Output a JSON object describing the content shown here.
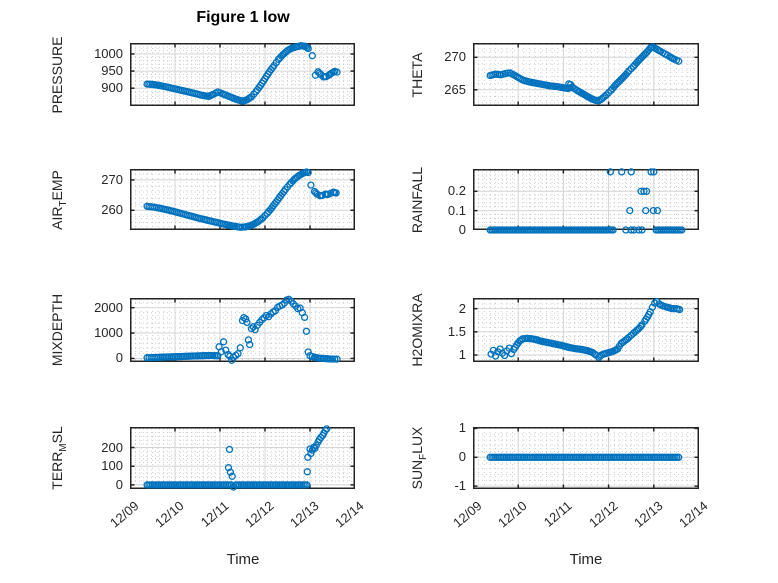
{
  "figure": {
    "title": "Figure 1 low"
  },
  "colors": {
    "marker": "#0072BD",
    "axis": "#242424",
    "grid_major": "#d4d4d4",
    "grid_minor": "#c7c7c7",
    "text": "#262626",
    "background": "#ffffff"
  },
  "x_axis": {
    "label": "Time",
    "ticks": [
      0,
      1,
      2,
      3,
      4,
      5
    ],
    "tick_labels": [
      "12/09",
      "12/10",
      "12/11",
      "12/12",
      "12/13",
      "12/14"
    ],
    "minor_step": 0.125
  },
  "chart_data": [
    {
      "id": "pressure",
      "type": "scatter",
      "marker": "o",
      "ylabel": "PRESSURE",
      "ylim": [
        848,
        1032
      ],
      "yticks": [
        900,
        950,
        1000
      ],
      "yminor": 10,
      "series": [
        {
          "kind": "trend",
          "x": [
            0.38,
            0.5,
            0.65,
            0.8,
            1.0,
            1.2,
            1.4,
            1.6,
            1.75,
            1.85,
            1.95,
            2.05,
            2.2,
            2.35,
            2.5,
            2.6,
            2.7,
            2.8,
            2.9,
            3.0,
            3.1,
            3.2,
            3.3,
            3.4,
            3.5,
            3.6,
            3.7,
            3.8,
            3.9,
            3.96
          ],
          "y": [
            912,
            911,
            908,
            904,
            898,
            892,
            886,
            879,
            876,
            882,
            889,
            884,
            876,
            868,
            862,
            866,
            875,
            890,
            908,
            928,
            948,
            966,
            984,
            998,
            1010,
            1017,
            1021,
            1024,
            1022,
            1016
          ]
        },
        {
          "kind": "points",
          "x": [
            4.05
          ],
          "y": [
            995
          ]
        },
        {
          "kind": "trend",
          "x": [
            4.12,
            4.18,
            4.24,
            4.3,
            4.36,
            4.42,
            4.48,
            4.55,
            4.6
          ],
          "y": [
            938,
            948,
            940,
            933,
            934,
            938,
            944,
            949,
            947
          ]
        }
      ]
    },
    {
      "id": "theta",
      "type": "scatter",
      "marker": "o",
      "ylabel": "THETA",
      "ylim": [
        262.5,
        272.2
      ],
      "yticks": [
        265,
        270
      ],
      "yminor": 1,
      "series": [
        {
          "kind": "trend",
          "x": [
            0.38,
            0.5,
            0.62,
            0.72,
            0.82,
            0.95,
            1.1,
            1.25,
            1.4,
            1.55,
            1.7,
            1.85,
            2.0,
            2.1,
            2.2,
            2.3,
            2.4,
            2.5,
            2.6,
            2.7,
            2.78,
            2.85,
            2.95,
            3.05,
            3.15,
            3.25,
            3.35,
            3.45,
            3.55,
            3.65,
            3.75,
            3.85,
            3.92,
            3.98,
            4.05,
            4.15,
            4.25,
            4.35,
            4.45,
            4.55
          ],
          "y": [
            267.2,
            267.4,
            267.3,
            267.5,
            267.6,
            267.1,
            266.5,
            266.2,
            266.0,
            265.8,
            265.6,
            265.5,
            265.3,
            265.2,
            265.4,
            264.9,
            264.5,
            264.1,
            263.7,
            263.4,
            263.3,
            263.6,
            264.2,
            264.9,
            265.7,
            266.4,
            267.1,
            267.9,
            268.6,
            269.4,
            270.1,
            270.8,
            271.4,
            271.6,
            271.3,
            270.9,
            270.5,
            270.1,
            269.7,
            269.4
          ]
        },
        {
          "kind": "points",
          "x": [
            2.12,
            2.16
          ],
          "y": [
            265.9,
            265.8
          ]
        }
      ]
    },
    {
      "id": "air-temp",
      "type": "scatter",
      "marker": "o",
      "ylabel": "AIR_TEMP",
      "ylim": [
        253.5,
        273.6
      ],
      "yticks": [
        260,
        270
      ],
      "yminor": 2,
      "series": [
        {
          "kind": "trend",
          "x": [
            0.38,
            0.55,
            0.75,
            0.95,
            1.15,
            1.35,
            1.55,
            1.75,
            1.95,
            2.15,
            2.3,
            2.45,
            2.55,
            2.65,
            2.75,
            2.85,
            2.95,
            3.05,
            3.15,
            3.25,
            3.35,
            3.45,
            3.55,
            3.65,
            3.75,
            3.85,
            3.92,
            3.96
          ],
          "y": [
            261.3,
            261.0,
            260.4,
            259.7,
            258.9,
            258.1,
            257.3,
            256.6,
            255.9,
            255.2,
            254.8,
            254.4,
            254.5,
            254.8,
            255.4,
            256.3,
            257.5,
            259.0,
            260.8,
            262.8,
            264.8,
            266.8,
            268.6,
            270.2,
            271.4,
            272.2,
            272.6,
            272.4
          ]
        },
        {
          "kind": "points",
          "x": [
            4.02
          ],
          "y": [
            268.3
          ]
        },
        {
          "kind": "trend",
          "x": [
            4.1,
            4.16,
            4.22,
            4.28,
            4.34,
            4.4,
            4.46,
            4.52,
            4.58
          ],
          "y": [
            266.2,
            265.3,
            264.8,
            264.9,
            265.3,
            265.2,
            265.6,
            266.0,
            265.7
          ]
        }
      ]
    },
    {
      "id": "rainfall",
      "type": "scatter",
      "marker": "o",
      "ylabel": "RAINFALL",
      "ylim": [
        0,
        0.315
      ],
      "yticks": [
        0,
        0.1,
        0.2
      ],
      "yminor": 0.02,
      "series": [
        {
          "kind": "trend",
          "x": [
            0.38,
            3.1
          ],
          "y": [
            0,
            0
          ]
        },
        {
          "kind": "points",
          "x": [
            3.38,
            3.5,
            3.56,
            3.67,
            3.74
          ],
          "y": [
            0,
            0,
            0,
            0,
            0
          ]
        },
        {
          "kind": "trend",
          "x": [
            4.05,
            4.62
          ],
          "y": [
            0,
            0
          ]
        },
        {
          "kind": "points",
          "x": [
            3.04,
            3.29,
            3.5,
            3.94,
            4.0
          ],
          "y": [
            0.3,
            0.3,
            0.3,
            0.3,
            0.3
          ]
        },
        {
          "kind": "points",
          "x": [
            3.72,
            3.78,
            3.84
          ],
          "y": [
            0.2,
            0.2,
            0.2
          ]
        },
        {
          "kind": "points",
          "x": [
            3.47,
            3.82,
            3.99,
            4.08
          ],
          "y": [
            0.1,
            0.1,
            0.1,
            0.1
          ]
        }
      ]
    },
    {
      "id": "mixdepth",
      "type": "scatter",
      "marker": "o",
      "ylabel": "MIXDEPTH",
      "ylim": [
        -140,
        2380
      ],
      "yticks": [
        0,
        1000,
        2000
      ],
      "yminor": 200,
      "series": [
        {
          "kind": "trend",
          "x": [
            0.38,
            0.6,
            0.8,
            1.0,
            1.2,
            1.4,
            1.6,
            1.8,
            1.95
          ],
          "y": [
            30,
            40,
            55,
            65,
            80,
            95,
            105,
            115,
            105
          ]
        },
        {
          "kind": "points",
          "x": [
            1.98,
            2.03,
            2.08,
            2.13,
            2.18,
            2.22,
            2.26,
            2.3,
            2.35,
            2.4,
            2.45,
            2.5,
            2.53,
            2.57,
            2.6,
            2.63,
            2.66,
            2.7,
            2.74,
            2.78,
            2.83,
            2.88,
            2.93,
            2.98,
            3.03,
            3.08,
            3.13,
            3.18,
            3.23,
            3.28,
            3.33,
            3.38,
            3.43,
            3.48,
            3.53,
            3.58,
            3.63,
            3.68,
            3.73,
            3.78,
            3.83,
            3.88,
            3.92,
            3.96
          ],
          "y": [
            460,
            260,
            655,
            330,
            155,
            90,
            -75,
            45,
            120,
            185,
            420,
            1490,
            1610,
            1555,
            1420,
            730,
            545,
            1175,
            1245,
            1130,
            1305,
            1420,
            1525,
            1600,
            1690,
            1645,
            1750,
            1830,
            1875,
            2010,
            2060,
            2105,
            2180,
            2300,
            2330,
            2255,
            2150,
            2060,
            1960,
            1985,
            1800,
            1615,
            1070,
            255
          ]
        },
        {
          "kind": "trend",
          "x": [
            4.0,
            4.1,
            4.2,
            4.3,
            4.4,
            4.5,
            4.6
          ],
          "y": [
            110,
            45,
            15,
            0,
            -15,
            -25,
            -25
          ]
        }
      ]
    },
    {
      "id": "h2omixra",
      "type": "scatter",
      "marker": "o",
      "ylabel": "H2OMIXRA",
      "ylim": [
        0.85,
        2.23
      ],
      "yticks": [
        1,
        1.5,
        2
      ],
      "yminor": 0.1,
      "series": [
        {
          "kind": "trend",
          "x": [
            0.4,
            0.45,
            0.5,
            0.55,
            0.6,
            0.65,
            0.7,
            0.75,
            0.8,
            0.85,
            0.9,
            0.97,
            1.03,
            1.1,
            1.2,
            1.3,
            1.4,
            1.5,
            1.65,
            1.8,
            1.95,
            2.1,
            2.25,
            2.4,
            2.55,
            2.65,
            2.72,
            2.78,
            2.84,
            2.92,
            3.0,
            3.1,
            3.2,
            3.28,
            3.35,
            3.45,
            3.55,
            3.62,
            3.68,
            3.74,
            3.8,
            3.86,
            3.92,
            3.97,
            4.02,
            4.07,
            4.12,
            4.2,
            4.3,
            4.4,
            4.5,
            4.57
          ],
          "y": [
            1.02,
            1.1,
            0.98,
            1.07,
            1.13,
            1.04,
            0.99,
            1.09,
            1.15,
            1.03,
            1.12,
            1.22,
            1.3,
            1.35,
            1.36,
            1.35,
            1.33,
            1.3,
            1.27,
            1.24,
            1.21,
            1.17,
            1.14,
            1.12,
            1.09,
            1.05,
            1.0,
            0.95,
            1.0,
            1.03,
            1.05,
            1.08,
            1.13,
            1.25,
            1.3,
            1.38,
            1.47,
            1.53,
            1.58,
            1.65,
            1.73,
            1.82,
            1.93,
            2.03,
            2.12,
            2.15,
            2.1,
            2.06,
            2.03,
            2.0,
            2.0,
            1.98
          ]
        }
      ]
    },
    {
      "id": "terr-msl",
      "type": "scatter",
      "marker": "o",
      "ylabel": "TERR_MSL",
      "ylim": [
        -22,
        310
      ],
      "yticks": [
        0,
        100,
        200
      ],
      "yminor": 20,
      "series": [
        {
          "kind": "trend",
          "x": [
            0.38,
            2.25,
            2.3,
            2.35,
            3.93
          ],
          "y": [
            0,
            0,
            -12,
            0,
            0
          ]
        },
        {
          "kind": "points",
          "x": [
            2.19,
            2.21,
            2.23,
            2.27,
            3.94,
            3.95,
            4.0,
            4.02,
            4.05,
            4.08,
            4.11,
            4.14,
            4.18,
            4.21,
            4.24,
            4.28,
            4.31,
            4.34,
            4.37
          ],
          "y": [
            92,
            190,
            68,
            46,
            70,
            148,
            192,
            168,
            186,
            200,
            196,
            212,
            230,
            243,
            254,
            264,
            278,
            291,
            300
          ]
        }
      ]
    },
    {
      "id": "sun-flux",
      "type": "scatter",
      "marker": "o",
      "ylabel": "SUN_FLUX",
      "ylim": [
        -1.1,
        1.05
      ],
      "yticks": [
        -1,
        0,
        1
      ],
      "yminor": 0.2,
      "series": [
        {
          "kind": "trend",
          "x": [
            0.38,
            4.55
          ],
          "y": [
            0,
            0
          ]
        }
      ]
    }
  ]
}
